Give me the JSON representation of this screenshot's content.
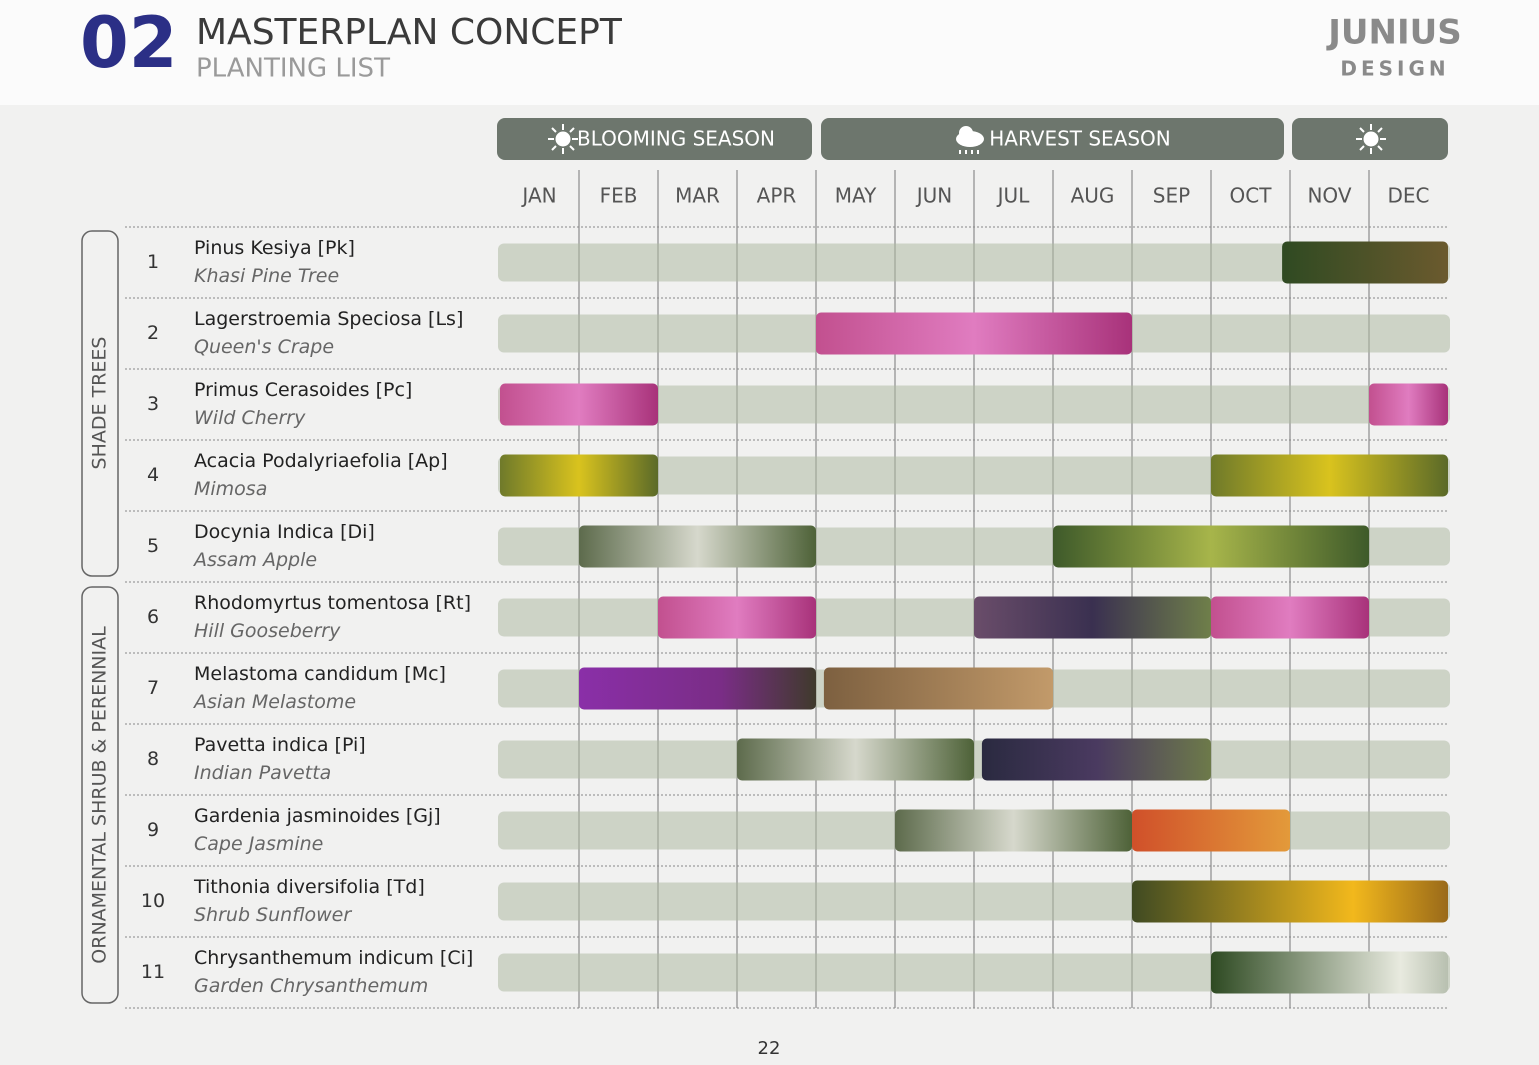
{
  "header": {
    "number": "02",
    "title": "MASTERPLAN CONCEPT",
    "subtitle": "PLANTING LIST",
    "logo": {
      "name": "JUNIUS",
      "tagline": "DESIGN"
    }
  },
  "seasons": [
    "BLOOMING SEASON",
    "HARVEST SEASON"
  ],
  "months": [
    "JAN",
    "FEB",
    "MAR",
    "APR",
    "MAY",
    "JUN",
    "JUL",
    "AUG",
    "SEP",
    "OCT",
    "NOV",
    "DEC"
  ],
  "groups": [
    "SHADE TREES",
    "ORNAMENTAL SHRUB & PERENNIAL"
  ],
  "rows": [
    {
      "number": "1",
      "name": "Pinus Kesiya [Pk]",
      "common": "Khasi Pine Tree"
    },
    {
      "number": "2",
      "name": "Lagerstroemia Speciosa [Ls]",
      "common": "Queen's Crape"
    },
    {
      "number": "3",
      "name": "Primus Cerasoides [Pc]",
      "common": "Wild Cherry"
    },
    {
      "number": "4",
      "name": "Acacia Podalyriaefolia [Ap]",
      "common": "Mimosa"
    },
    {
      "number": "5",
      "name": "Docynia Indica [Di]",
      "common": "Assam Apple"
    },
    {
      "number": "6",
      "name": "Rhodomyrtus tomentosa [Rt]",
      "common": "Hill Gooseberry"
    },
    {
      "number": "7",
      "name": "Melastoma candidum [Mc]",
      "common": "Asian Melastome"
    },
    {
      "number": "8",
      "name": "Pavetta indica [Pi]",
      "common": "Indian Pavetta"
    },
    {
      "number": "9",
      "name": "Gardenia jasminoides [Gj]",
      "common": "Cape Jasmine"
    },
    {
      "number": "10",
      "name": "Tithonia diversifolia [Td]",
      "common": "Shrub Sunflower"
    },
    {
      "number": "11",
      "name": "Chrysanthemum indicum [Ci]",
      "common": "Garden Chrysanthemum"
    }
  ],
  "page_number": "22"
}
